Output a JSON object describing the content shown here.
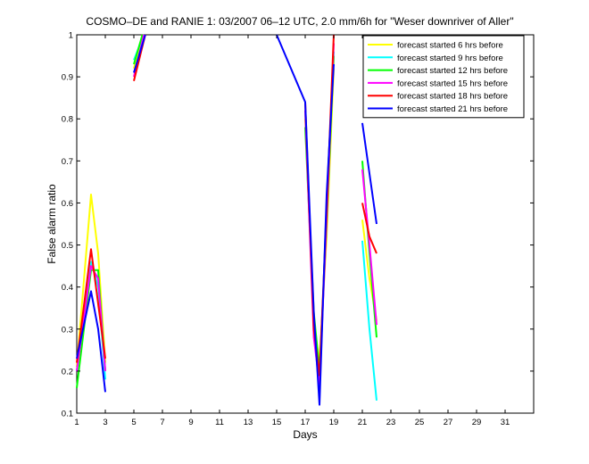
{
  "chart_data": {
    "type": "line",
    "title": "COSMO–DE and RANIE 1: 03/2007 06–12 UTC, 2.0 mm/6h for \"Weser downriver of Aller\"",
    "xlabel": "Days",
    "ylabel": "False alarm ratio",
    "xlim": [
      1,
      33
    ],
    "ylim": [
      0.1,
      1.0
    ],
    "xticks": [
      1,
      3,
      5,
      7,
      9,
      11,
      13,
      15,
      17,
      19,
      21,
      23,
      25,
      27,
      29,
      31
    ],
    "yticks": [
      0.1,
      0.2,
      0.3,
      0.4,
      0.5,
      0.6,
      0.7,
      0.8,
      0.9,
      1.0
    ],
    "ytick_labels": [
      "0.1",
      "0.2",
      "0.3",
      "0.4",
      "0.5",
      "0.6",
      "0.7",
      "0.8",
      "0.9",
      "1"
    ],
    "grid": false,
    "legend_position": "top-right",
    "series": [
      {
        "name": "forecast started 6 hrs before",
        "color": "#ffff00",
        "segments": [
          [
            [
              1.0,
              0.21
            ],
            [
              2.0,
              0.62
            ],
            [
              2.5,
              0.48
            ],
            [
              3.0,
              0.22
            ]
          ],
          [
            [
              5.0,
              0.92
            ],
            [
              5.6,
              1.0
            ]
          ],
          [
            [
              17.0,
              0.8
            ],
            [
              17.6,
              0.32
            ],
            [
              18.0,
              0.22
            ],
            [
              18.5,
              0.52
            ],
            [
              19.0,
              0.92
            ]
          ],
          [
            [
              21.0,
              0.56
            ],
            [
              21.5,
              0.42
            ],
            [
              22.0,
              0.32
            ]
          ]
        ]
      },
      {
        "name": "forecast started 9 hrs before",
        "color": "#00ffff",
        "segments": [
          [
            [
              1.0,
              0.2
            ],
            [
              2.0,
              0.46
            ],
            [
              2.5,
              0.4
            ],
            [
              3.0,
              0.18
            ]
          ],
          [
            [
              5.0,
              0.94
            ],
            [
              5.7,
              1.0
            ]
          ],
          [
            [
              17.0,
              0.82
            ],
            [
              17.6,
              0.3
            ],
            [
              18.0,
              0.15
            ],
            [
              18.5,
              0.6
            ],
            [
              19.0,
              0.96
            ]
          ],
          [
            [
              21.0,
              0.51
            ],
            [
              21.5,
              0.3
            ],
            [
              22.0,
              0.13
            ]
          ]
        ]
      },
      {
        "name": "forecast started 12 hrs before",
        "color": "#00ff00",
        "segments": [
          [
            [
              1.0,
              0.16
            ],
            [
              2.0,
              0.44
            ],
            [
              2.5,
              0.44
            ],
            [
              3.0,
              0.2
            ]
          ],
          [
            [
              5.0,
              0.93
            ],
            [
              5.6,
              1.0
            ]
          ],
          [
            [
              17.0,
              0.78
            ],
            [
              17.6,
              0.34
            ],
            [
              18.0,
              0.2
            ],
            [
              18.5,
              0.55
            ],
            [
              19.0,
              0.95
            ]
          ],
          [
            [
              21.0,
              0.7
            ],
            [
              21.5,
              0.48
            ],
            [
              22.0,
              0.28
            ]
          ]
        ]
      },
      {
        "name": "forecast started 15 hrs before",
        "color": "#ff00ff",
        "segments": [
          [
            [
              1.0,
              0.2
            ],
            [
              2.0,
              0.45
            ],
            [
              2.5,
              0.42
            ],
            [
              3.0,
              0.2
            ]
          ],
          [
            [
              5.0,
              0.9
            ],
            [
              5.7,
              1.0
            ]
          ],
          [
            [
              17.0,
              0.82
            ],
            [
              17.6,
              0.28
            ],
            [
              18.0,
              0.17
            ],
            [
              18.5,
              0.56
            ],
            [
              19.0,
              0.98
            ]
          ],
          [
            [
              21.0,
              0.68
            ],
            [
              21.5,
              0.5
            ],
            [
              22.0,
              0.31
            ]
          ]
        ]
      },
      {
        "name": "forecast started 18 hrs before",
        "color": "#ff0000",
        "segments": [
          [
            [
              1.0,
              0.22
            ],
            [
              2.0,
              0.49
            ],
            [
              2.5,
              0.36
            ],
            [
              3.0,
              0.23
            ]
          ],
          [
            [
              5.0,
              0.89
            ],
            [
              5.8,
              1.0
            ]
          ],
          [
            [
              17.0,
              0.84
            ],
            [
              17.6,
              0.3
            ],
            [
              18.0,
              0.19
            ],
            [
              18.5,
              0.58
            ],
            [
              19.0,
              1.0
            ]
          ],
          [
            [
              21.0,
              0.6
            ],
            [
              21.5,
              0.52
            ],
            [
              22.0,
              0.48
            ]
          ]
        ]
      },
      {
        "name": "forecast started 21 hrs before",
        "color": "#0000ff",
        "segments": [
          [
            [
              1.0,
              0.23
            ],
            [
              2.0,
              0.39
            ],
            [
              2.5,
              0.3
            ],
            [
              3.0,
              0.15
            ]
          ],
          [
            [
              5.0,
              0.91
            ],
            [
              5.8,
              1.0
            ]
          ],
          [
            [
              15.0,
              1.0
            ],
            [
              17.0,
              0.84
            ],
            [
              17.6,
              0.34
            ],
            [
              18.0,
              0.12
            ],
            [
              18.5,
              0.62
            ],
            [
              19.0,
              0.93
            ]
          ],
          [
            [
              21.0,
              0.79
            ],
            [
              21.5,
              0.67
            ],
            [
              22.0,
              0.55
            ]
          ]
        ]
      }
    ]
  }
}
